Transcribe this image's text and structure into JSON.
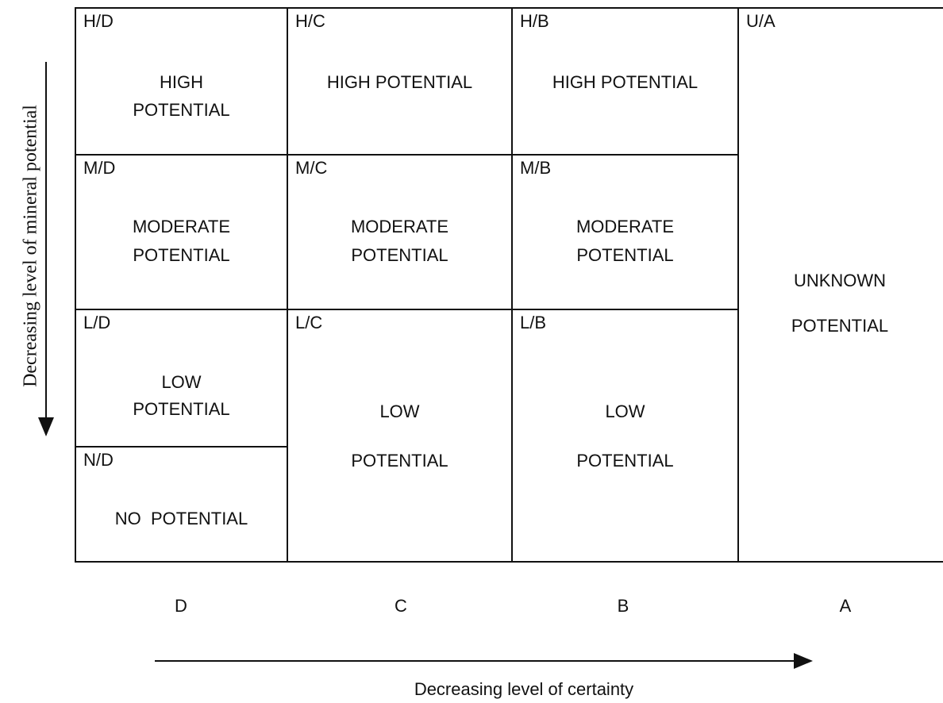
{
  "cells": [
    {
      "code": "H/D",
      "lines": [
        "HIGH",
        "POTENTIAL"
      ]
    },
    {
      "code": "H/C",
      "lines": [
        "HIGH POTENTIAL"
      ]
    },
    {
      "code": "H/B",
      "lines": [
        "HIGH POTENTIAL"
      ]
    },
    {
      "code": "U/A",
      "lines": [
        "UNKNOWN",
        "POTENTIAL"
      ]
    },
    {
      "code": "M/D",
      "lines": [
        "MODERATE",
        "POTENTIAL"
      ]
    },
    {
      "code": "M/C",
      "lines": [
        "MODERATE",
        "POTENTIAL"
      ]
    },
    {
      "code": "M/B",
      "lines": [
        "MODERATE",
        "POTENTIAL"
      ]
    },
    {
      "code": "L/D",
      "lines": [
        "LOW",
        "POTENTIAL"
      ]
    },
    {
      "code": "L/C",
      "lines": [
        "LOW",
        "POTENTIAL"
      ]
    },
    {
      "code": "L/B",
      "lines": [
        "LOW",
        "POTENTIAL"
      ]
    },
    {
      "code": "N/D",
      "lines": [
        "NO  POTENTIAL"
      ]
    }
  ],
  "columns": [
    "D",
    "C",
    "B",
    "A"
  ],
  "x_axis_label": "Decreasing level of certainty",
  "y_axis_label": "Decreasing level of mineral potential"
}
